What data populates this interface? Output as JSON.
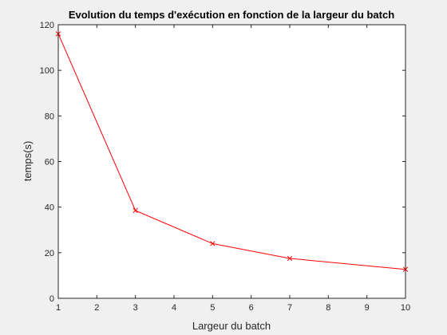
{
  "chart_data": {
    "type": "line",
    "title": "Evolution du temps d'exécution en fonction de la largeur du batch",
    "xlabel": "Largeur du batch",
    "ylabel": "temps(s)",
    "xlim": [
      1,
      10
    ],
    "ylim": [
      0,
      120
    ],
    "xticks": [
      "1",
      "2",
      "3",
      "4",
      "5",
      "6",
      "7",
      "8",
      "9",
      "10"
    ],
    "yticks": [
      "0",
      "20",
      "40",
      "60",
      "80",
      "100",
      "120"
    ],
    "grid": false,
    "legend": "none",
    "series": [
      {
        "x": [
          1,
          3,
          5,
          7,
          10
        ],
        "y": [
          116,
          38.5,
          24,
          17.5,
          12.7
        ],
        "color": "#ff0000",
        "marker": "x"
      }
    ]
  }
}
